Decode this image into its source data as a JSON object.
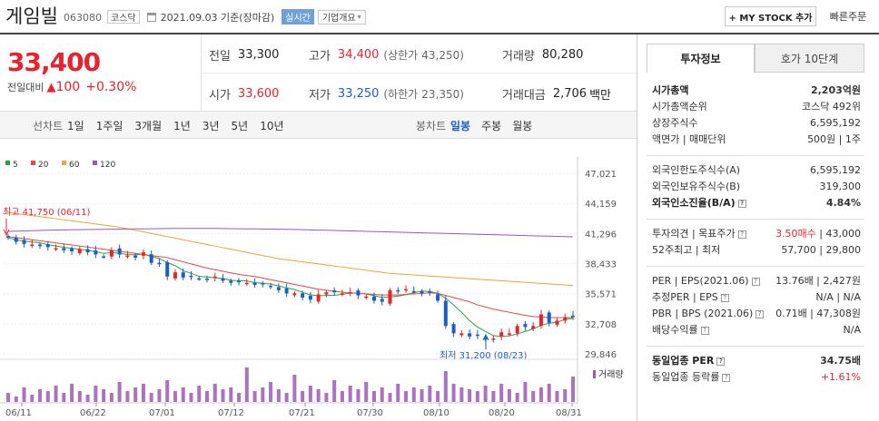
{
  "header": {
    "name": "게임빌",
    "code": "063080",
    "market": "코스닥",
    "date": "2021.09.03 기준(장마감)",
    "realtime": "실시간",
    "company_btn": "기업개요",
    "mystock": "+ MY STOCK 추가",
    "quick_order": "빠른주문"
  },
  "price": {
    "current": "33,400",
    "change_label": "전일대비",
    "change_arrow": "▲",
    "change": "100",
    "change_pct": "+0.30%"
  },
  "summary": {
    "prev_label": "전일",
    "prev": "33,300",
    "high_label": "고가",
    "high": "34,400",
    "upper_label": "(상한가",
    "upper": "43,250)",
    "volume_label": "거래량",
    "volume": "80,280",
    "open_label": "시가",
    "open": "33,600",
    "low_label": "저가",
    "low": "33,250",
    "lower_label": "(하한가",
    "lower": "23,350)",
    "amount_label": "거래대금",
    "amount": "2,706",
    "amount_unit": "백만"
  },
  "toolbar": {
    "line_chart": "선차트",
    "periods": [
      "1일",
      "1주일",
      "3개월",
      "1년",
      "3년",
      "5년",
      "10년"
    ],
    "candle_chart": "봉차트",
    "candle_periods": [
      "일봉",
      "주봉",
      "월봉"
    ]
  },
  "colors": {
    "up": "#e8232e",
    "down": "#1a5fc6",
    "ma5": "#25a53a",
    "ma20": "#e84545",
    "ma60": "#f0a23c",
    "ma120": "#9b59b6",
    "volume": "#9b59b6"
  },
  "chart_data": {
    "type": "candlestick",
    "legend": [
      "5",
      "20",
      "60",
      "120"
    ],
    "y_ticks": [
      "47,021",
      "44,159",
      "41,296",
      "38,433",
      "35,571",
      "32,708",
      "29,846"
    ],
    "y_range": [
      29846,
      47021
    ],
    "x_ticks": [
      "06/11",
      "06/22",
      "07/01",
      "07/12",
      "07/21",
      "07/30",
      "08/10",
      "08/20",
      "08/31"
    ],
    "annotation_high": "최고 41,750 (06/11)",
    "annotation_low": "최저 31,200 (08/23)",
    "volume_label": "거래량",
    "series": [
      {
        "name": "close",
        "values": [
          40900,
          40500,
          40300,
          40250,
          40100,
          40000,
          39900,
          39700,
          39600,
          39800,
          39500,
          39300,
          39100,
          39700,
          39300,
          39200,
          39000,
          39500,
          38500,
          38400,
          37200,
          37600,
          37100,
          37200,
          37000,
          36900,
          37200,
          36800,
          36600,
          36700,
          36600,
          36400,
          36500,
          36200,
          35900,
          35600,
          35600,
          35200,
          35000,
          35500,
          35700,
          35700,
          35600,
          35700,
          35400,
          35300,
          34900,
          34800,
          35900,
          35800,
          36000,
          35800,
          35600,
          35700,
          34900,
          32500,
          31800,
          31800,
          31500,
          31600,
          31200,
          31300,
          31900,
          31800,
          32500,
          32400,
          32500,
          33600,
          32800,
          33000,
          33300,
          33400
        ]
      },
      {
        "name": "ma5",
        "values": [
          40900,
          40700,
          40570,
          40490,
          40410,
          40230,
          40110,
          39990,
          39880,
          39800,
          39700,
          39580,
          39400,
          39480,
          39400,
          39300,
          39260,
          39340,
          39100,
          38920,
          38520,
          38240,
          37760,
          37500,
          37220,
          37160,
          37080,
          37020,
          36840,
          36800,
          36780,
          36620,
          36560,
          36480,
          36320,
          36120,
          35960,
          35700,
          35460,
          35380,
          35400,
          35420,
          35500,
          35640,
          35620,
          35540,
          35380,
          35220,
          35260,
          35340,
          35480,
          35660,
          35820,
          35780,
          35600,
          35140,
          34500,
          33800,
          33000,
          32400,
          31980,
          31580,
          31500,
          31560,
          31740,
          31980,
          32220,
          32560,
          32760,
          32860,
          33120,
          33220
        ]
      },
      {
        "name": "ma20",
        "values": [
          41000,
          40900,
          40800,
          40700,
          40600,
          40500,
          40400,
          40300,
          40200,
          40100,
          40000,
          39900,
          39800,
          39700,
          39600,
          39500,
          39400,
          39300,
          39200,
          39100,
          39000,
          38800,
          38600,
          38400,
          38200,
          38000,
          37850,
          37700,
          37550,
          37400,
          37300,
          37200,
          37050,
          36900,
          36750,
          36600,
          36450,
          36300,
          36150,
          36000,
          35900,
          35800,
          35700,
          35650,
          35600,
          35550,
          35500,
          35450,
          35450,
          35450,
          35500,
          35550,
          35600,
          35650,
          35600,
          35400,
          35200,
          35000,
          34800,
          34500,
          34300,
          34100,
          33950,
          33800,
          33650,
          33500,
          33400,
          33350,
          33300,
          33300,
          33300,
          33300
        ]
      },
      {
        "name": "ma60",
        "values": [
          43300,
          43200,
          43100,
          43000,
          42900,
          42800,
          42700,
          42600,
          42500,
          42400,
          42300,
          42200,
          42100,
          42000,
          41900,
          41750,
          41600,
          41450,
          41300,
          41150,
          41000,
          40850,
          40700,
          40550,
          40400,
          40250,
          40100,
          39950,
          39800,
          39650,
          39500,
          39350,
          39200,
          39050,
          38900,
          38800,
          38700,
          38600,
          38500,
          38400,
          38300,
          38200,
          38100,
          38000,
          37900,
          37800,
          37700,
          37600,
          37500,
          37450,
          37400,
          37350,
          37300,
          37250,
          37200,
          37150,
          37100,
          37050,
          37000,
          36950,
          36900,
          36850,
          36800,
          36750,
          36700,
          36650,
          36600,
          36550,
          36500,
          36450,
          36400,
          36350
        ]
      },
      {
        "name": "ma120",
        "values": [
          41500,
          41520,
          41540,
          41560,
          41580,
          41600,
          41620,
          41640,
          41650,
          41660,
          41670,
          41680,
          41690,
          41700,
          41710,
          41720,
          41730,
          41740,
          41750,
          41760,
          41770,
          41780,
          41780,
          41780,
          41780,
          41780,
          41780,
          41770,
          41760,
          41750,
          41740,
          41730,
          41720,
          41710,
          41700,
          41690,
          41680,
          41660,
          41640,
          41620,
          41600,
          41580,
          41560,
          41540,
          41520,
          41500,
          41480,
          41460,
          41440,
          41420,
          41400,
          41380,
          41360,
          41340,
          41320,
          41300,
          41280,
          41260,
          41240,
          41220,
          41200,
          41180,
          41160,
          41140,
          41120,
          41100,
          41080,
          41060,
          41040,
          41020,
          41000,
          40980
        ]
      },
      {
        "name": "volume",
        "values": [
          0.25,
          0.15,
          0.4,
          0.2,
          0.35,
          0.3,
          0.45,
          0.25,
          0.5,
          0.3,
          0.2,
          0.45,
          0.35,
          0.25,
          0.55,
          0.3,
          0.4,
          0.5,
          0.25,
          0.35,
          0.6,
          0.3,
          0.4,
          0.25,
          0.45,
          0.3,
          0.5,
          0.35,
          0.4,
          0.25,
          0.95,
          0.3,
          0.4,
          0.55,
          0.35,
          0.25,
          0.75,
          0.3,
          0.45,
          0.35,
          0.25,
          0.6,
          0.3,
          0.45,
          0.35,
          0.55,
          0.3,
          0.4,
          0.25,
          0.5,
          0.3,
          0.4,
          0.35,
          0.45,
          0.3,
          0.85,
          0.5,
          0.4,
          0.35,
          0.3,
          0.45,
          0.3,
          0.5,
          0.35,
          0.25,
          0.55,
          0.3,
          0.4,
          0.5,
          0.3,
          0.35,
          0.7
        ]
      }
    ]
  },
  "invest_tabs": {
    "info": "투자정보",
    "hoga": "호가 10단계"
  },
  "invest": [
    {
      "label": "시가총액",
      "value": "2,203억원",
      "bold": true
    },
    {
      "label": "시가총액순위",
      "value": "코스닥 492위"
    },
    {
      "label": "상장주식수",
      "value": "6,595,192"
    },
    {
      "label": "액면가 | 매매단위",
      "value": "500원 | 1주"
    },
    {
      "label": "외국인한도주식수(A)",
      "value": "6,595,192"
    },
    {
      "label": "외국인보유주식수(B)",
      "value": "319,300"
    },
    {
      "label": "외국인소진율(B/A)",
      "value": "4.84%",
      "bold": true
    },
    {
      "label": "투자의견 | 목표주가",
      "value_red": "3.50매수",
      "value": " | 43,000"
    },
    {
      "label": "52주최고 | 최저",
      "value": "57,700 | 29,800"
    },
    {
      "label": "PER | EPS(2021.06)",
      "value": "13.76배 | 2,427원"
    },
    {
      "label": "추정PER | EPS",
      "value": "N/A | N/A"
    },
    {
      "label": "PBR | BPS (2021.06)",
      "value": "0.71배 | 47,308원"
    },
    {
      "label": "배당수익률",
      "value": "N/A"
    },
    {
      "label": "동일업종 PER",
      "value": "34.75배",
      "bold": true
    },
    {
      "label": "동일업종 등락률",
      "value": "+1.61%",
      "red": true
    }
  ]
}
